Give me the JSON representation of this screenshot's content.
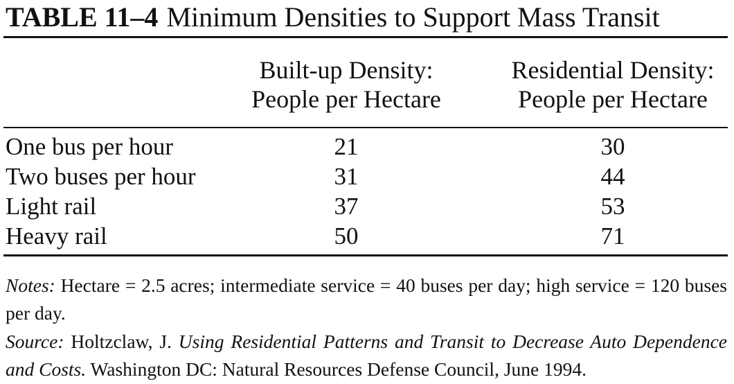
{
  "table": {
    "number": "TABLE 11–4",
    "title": "Minimum Densities to Support Mass Transit",
    "columns": [
      {
        "line1": "Built-up Density:",
        "line2": "People per Hectare"
      },
      {
        "line1": "Residential Density:",
        "line2": "People per Hectare"
      }
    ],
    "rows": [
      {
        "label": "One bus per hour",
        "built_up": "21",
        "residential": "30"
      },
      {
        "label": "Two buses per hour",
        "built_up": "31",
        "residential": "44"
      },
      {
        "label": "Light rail",
        "built_up": "37",
        "residential": "53"
      },
      {
        "label": "Heavy rail",
        "built_up": "50",
        "residential": "71"
      }
    ]
  },
  "notes": {
    "label": "Notes:",
    "text": " Hectare = 2.5 acres; intermediate service = 40 buses per day; high service = 120 buses per day."
  },
  "source": {
    "label": "Source:",
    "author": " Holtzclaw, J. ",
    "work": "Using Residential Patterns and Transit to Decrease Auto Dependence and Costs.",
    "publisher": " Washington DC: Natural Resources Defense Council, June 1994."
  }
}
